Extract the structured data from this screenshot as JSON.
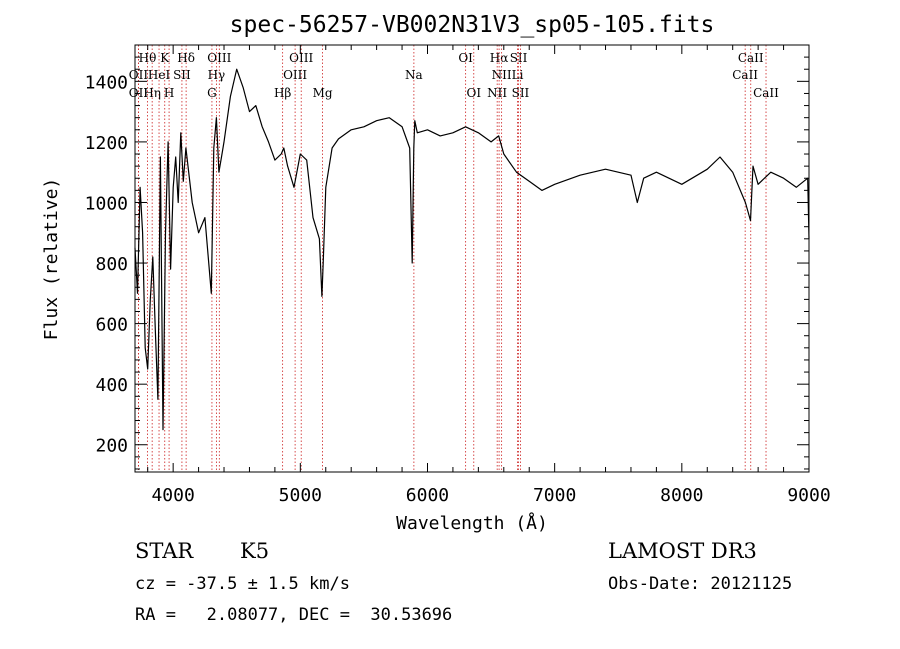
{
  "chart_data": {
    "type": "line",
    "title": "spec-56257-VB002N31V3_sp05-105.fits",
    "xlabel": "Wavelength (Å)",
    "ylabel": "Flux (relative)",
    "xlim": [
      3700,
      9000
    ],
    "ylim": [
      110,
      1520
    ],
    "xticks": [
      4000,
      5000,
      6000,
      7000,
      8000,
      9000
    ],
    "xtick_labels": [
      "4000",
      "5000",
      "6000",
      "7000",
      "8000",
      "9000"
    ],
    "yticks": [
      200,
      400,
      600,
      800,
      1000,
      1200,
      1400
    ],
    "ytick_labels": [
      "200",
      "400",
      "600",
      "800",
      "1000",
      "1200",
      "1400"
    ],
    "series": [
      {
        "name": "flux",
        "x": [
          3700,
          3720,
          3740,
          3760,
          3780,
          3800,
          3820,
          3840,
          3860,
          3880,
          3900,
          3920,
          3940,
          3960,
          3980,
          4000,
          4020,
          4040,
          4060,
          4080,
          4100,
          4150,
          4200,
          4250,
          4300,
          4320,
          4340,
          4360,
          4380,
          4400,
          4450,
          4500,
          4550,
          4600,
          4650,
          4700,
          4750,
          4800,
          4850,
          4870,
          4900,
          4950,
          5000,
          5050,
          5100,
          5150,
          5170,
          5180,
          5200,
          5250,
          5300,
          5400,
          5500,
          5600,
          5700,
          5800,
          5860,
          5880,
          5892,
          5900,
          5920,
          6000,
          6100,
          6200,
          6300,
          6400,
          6500,
          6560,
          6600,
          6700,
          6800,
          6900,
          7000,
          7200,
          7400,
          7600,
          7650,
          7700,
          7800,
          8000,
          8200,
          8300,
          8400,
          8500,
          8540,
          8560,
          8600,
          8700,
          8800,
          8900,
          8990,
          9000
        ],
        "values": [
          850,
          700,
          1050,
          900,
          520,
          450,
          680,
          820,
          580,
          350,
          1150,
          250,
          900,
          1200,
          780,
          1050,
          1150,
          1000,
          1230,
          1070,
          1180,
          1000,
          900,
          950,
          700,
          1180,
          1280,
          1100,
          1150,
          1200,
          1350,
          1440,
          1380,
          1300,
          1320,
          1250,
          1200,
          1140,
          1160,
          1180,
          1120,
          1050,
          1160,
          1140,
          950,
          880,
          690,
          800,
          1050,
          1180,
          1210,
          1240,
          1250,
          1270,
          1280,
          1250,
          1180,
          800,
          1180,
          1270,
          1230,
          1240,
          1220,
          1230,
          1250,
          1230,
          1200,
          1220,
          1160,
          1100,
          1070,
          1040,
          1060,
          1090,
          1110,
          1090,
          1000,
          1080,
          1100,
          1060,
          1110,
          1150,
          1100,
          1000,
          940,
          1120,
          1060,
          1100,
          1080,
          1050,
          1080,
          880
        ]
      }
    ],
    "lines": [
      {
        "label": "Hθ",
        "wave": 3798,
        "row": 1
      },
      {
        "label": "OII",
        "wave": 3727,
        "row": 2
      },
      {
        "label": "OII",
        "wave": 3727,
        "row": 3
      },
      {
        "label": "K",
        "wave": 3934,
        "row": 1
      },
      {
        "label": "HeI",
        "wave": 3889,
        "row": 2
      },
      {
        "label": "Hη",
        "wave": 3835,
        "row": 3
      },
      {
        "label": "Hδ",
        "wave": 4102,
        "row": 1
      },
      {
        "label": "SII",
        "wave": 4069,
        "row": 2
      },
      {
        "label": "H",
        "wave": 3968,
        "row": 3
      },
      {
        "label": "OIII",
        "wave": 4363,
        "row": 1
      },
      {
        "label": "Hγ",
        "wave": 4340,
        "row": 2
      },
      {
        "label": "G",
        "wave": 4305,
        "row": 3
      },
      {
        "label": "OIII",
        "wave": 5007,
        "row": 1
      },
      {
        "label": "OIII",
        "wave": 4959,
        "row": 2
      },
      {
        "label": "Hβ",
        "wave": 4861,
        "row": 3
      },
      {
        "label": "Mg",
        "wave": 5175,
        "row": 3
      },
      {
        "label": "Na",
        "wave": 5893,
        "row": 2
      },
      {
        "label": "OI",
        "wave": 6300,
        "row": 1
      },
      {
        "label": "OI",
        "wave": 6364,
        "row": 3
      },
      {
        "label": "Hα",
        "wave": 6563,
        "row": 1
      },
      {
        "label": "SII",
        "wave": 6716,
        "row": 1
      },
      {
        "label": "NII",
        "wave": 6583,
        "row": 2
      },
      {
        "label": "Li",
        "wave": 6708,
        "row": 2
      },
      {
        "label": "NII",
        "wave": 6548,
        "row": 3
      },
      {
        "label": "SII",
        "wave": 6731,
        "row": 3
      },
      {
        "label": "CaII",
        "wave": 8542,
        "row": 1
      },
      {
        "label": "CaII",
        "wave": 8498,
        "row": 2
      },
      {
        "label": "CaII",
        "wave": 8662,
        "row": 3
      }
    ]
  },
  "footer": {
    "object_class": "STAR",
    "subclass": "K5",
    "redshift": "cz = -37.5 ± 1.5 km/s",
    "coords": "RA =   2.08077, DEC =  30.53696",
    "survey": "LAMOST DR3",
    "obs_date": "Obs-Date: 20121125"
  },
  "colors": {
    "line_marker": "#cc2222",
    "spectrum": "#000000"
  }
}
